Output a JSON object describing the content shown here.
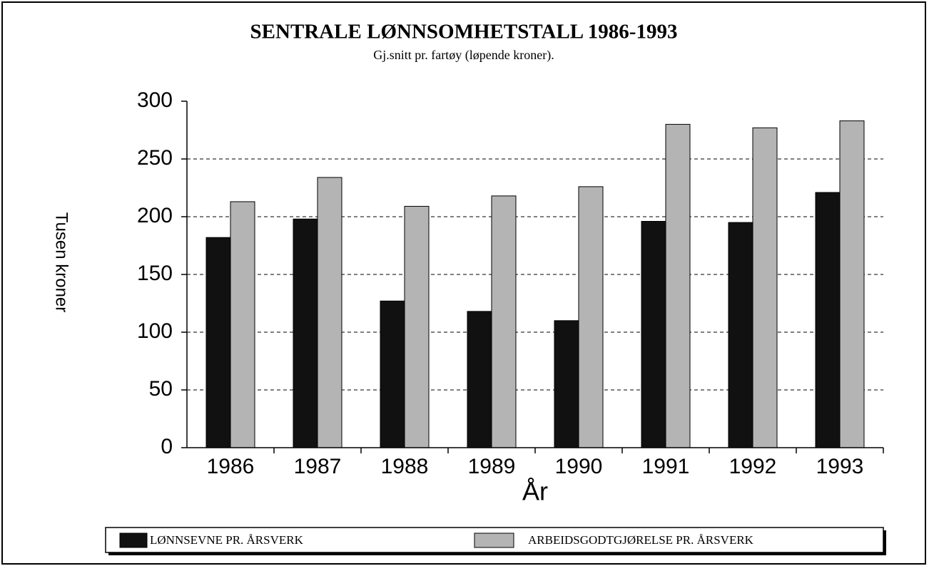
{
  "chart_data": {
    "type": "bar",
    "title": "SENTRALE LØNNSOMHETSTALL 1986-1993",
    "subtitle": "Gj.snitt pr. fartøy (løpende kroner).",
    "x_label": "År",
    "y_label": "Tusen kroner",
    "categories": [
      "1986",
      "1987",
      "1988",
      "1989",
      "1990",
      "1991",
      "1992",
      "1993"
    ],
    "series": [
      {
        "name": "LØNNSEVNE PR. ÅRSVERK",
        "color": "#111111",
        "values": [
          182,
          198,
          127,
          118,
          110,
          196,
          195,
          221
        ]
      },
      {
        "name": "ARBEIDSGODTGJØRELSE PR. ÅRSVERK",
        "color": "#b4b4b4",
        "values": [
          213,
          234,
          209,
          218,
          226,
          280,
          277,
          283
        ]
      }
    ],
    "ylim": [
      0,
      300
    ],
    "yticks": [
      0,
      50,
      100,
      150,
      200,
      250,
      300
    ],
    "grid": true,
    "legend": "bottom"
  }
}
